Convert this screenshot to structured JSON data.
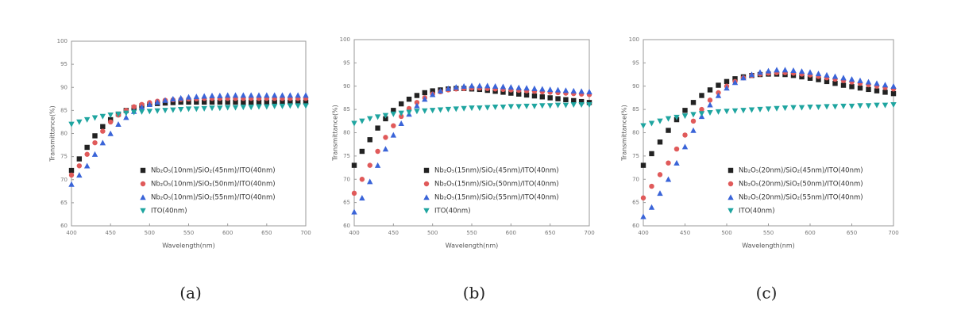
{
  "chart_data": [
    {
      "type": "scatter",
      "caption": "(a)",
      "xlabel": "Wavelength(nm)",
      "ylabel": "Transmittance(%)",
      "x": [
        400,
        410,
        420,
        430,
        440,
        450,
        460,
        470,
        480,
        490,
        500,
        510,
        520,
        530,
        540,
        550,
        560,
        570,
        580,
        590,
        600,
        610,
        620,
        630,
        640,
        650,
        660,
        670,
        680,
        690,
        700
      ],
      "xlim": [
        400,
        700
      ],
      "xticks": [
        400,
        450,
        500,
        550,
        600,
        650,
        700
      ],
      "ylim": [
        60,
        100
      ],
      "yticks": [
        60,
        65,
        70,
        75,
        80,
        85,
        90,
        95,
        100
      ],
      "legend": "lower right",
      "series": [
        {
          "name": "Nb₂O₅(10nm)/SiO₂(45nm)/ITO(40nm)",
          "color": "#222222",
          "marker": "square",
          "values": [
            72,
            74.5,
            77,
            79.5,
            81.5,
            83,
            84.2,
            85,
            85.6,
            86,
            86.3,
            86.5,
            86.6,
            86.7,
            86.8,
            86.8,
            86.8,
            86.8,
            86.8,
            86.8,
            86.8,
            86.8,
            86.8,
            86.8,
            86.8,
            86.8,
            86.8,
            86.8,
            86.8,
            86.8,
            86.8
          ]
        },
        {
          "name": "Nb₂O₅(10nm)/SiO₂(50nm)/ITO(40nm)",
          "color": "#e05a5a",
          "marker": "circle",
          "values": [
            71,
            73,
            75.5,
            78,
            80.5,
            82.5,
            84,
            85,
            85.8,
            86.3,
            86.7,
            87,
            87.2,
            87.3,
            87.4,
            87.5,
            87.5,
            87.6,
            87.6,
            87.6,
            87.6,
            87.6,
            87.6,
            87.6,
            87.6,
            87.6,
            87.6,
            87.6,
            87.6,
            87.6,
            87.6
          ]
        },
        {
          "name": "Nb₂O₅(10nm)/SiO₂(55nm)/ITO(40nm)",
          "color": "#3a64d8",
          "marker": "triangle-up",
          "values": [
            69,
            71,
            73,
            75.5,
            78,
            80,
            82,
            83.5,
            84.8,
            85.7,
            86.3,
            86.8,
            87.2,
            87.5,
            87.7,
            87.9,
            88,
            88.1,
            88.2,
            88.2,
            88.3,
            88.3,
            88.3,
            88.3,
            88.3,
            88.3,
            88.3,
            88.3,
            88.3,
            88.3,
            88.3
          ]
        },
        {
          "name": "ITO(40nm)",
          "color": "#1fa5a0",
          "marker": "triangle-down",
          "values": [
            82,
            82.5,
            83,
            83.4,
            83.7,
            84,
            84.2,
            84.4,
            84.6,
            84.7,
            84.8,
            84.9,
            85,
            85.1,
            85.2,
            85.3,
            85.3,
            85.4,
            85.5,
            85.5,
            85.6,
            85.6,
            85.7,
            85.7,
            85.8,
            85.8,
            85.9,
            85.9,
            86,
            86,
            86
          ]
        }
      ]
    },
    {
      "type": "scatter",
      "caption": "(b)",
      "xlabel": "Wavelength(nm)",
      "ylabel": "Transmittance(%)",
      "x": [
        400,
        410,
        420,
        430,
        440,
        450,
        460,
        470,
        480,
        490,
        500,
        510,
        520,
        530,
        540,
        550,
        560,
        570,
        580,
        590,
        600,
        610,
        620,
        630,
        640,
        650,
        660,
        670,
        680,
        690,
        700
      ],
      "xlim": [
        400,
        700
      ],
      "xticks": [
        400,
        450,
        500,
        550,
        600,
        650,
        700
      ],
      "ylim": [
        60,
        100
      ],
      "yticks": [
        60,
        65,
        70,
        75,
        80,
        85,
        90,
        95,
        100
      ],
      "legend": "lower right",
      "series": [
        {
          "name": "Nb₂O₅(15nm)/SiO₂(45nm)/ITO(40nm)",
          "color": "#222222",
          "marker": "square",
          "values": [
            73,
            76,
            78.5,
            81,
            83,
            84.8,
            86.2,
            87.2,
            88,
            88.6,
            89,
            89.2,
            89.4,
            89.5,
            89.5,
            89.4,
            89.3,
            89.1,
            88.9,
            88.7,
            88.5,
            88.3,
            88.1,
            87.9,
            87.7,
            87.5,
            87.3,
            87.1,
            86.9,
            86.7,
            86.5
          ]
        },
        {
          "name": "Nb₂O₅(15nm)/SiO₂(50nm)/ITO(40nm)",
          "color": "#e05a5a",
          "marker": "circle",
          "values": [
            67,
            70,
            73,
            76,
            79,
            81.5,
            83.5,
            85.2,
            86.5,
            87.5,
            88.3,
            88.8,
            89.2,
            89.4,
            89.5,
            89.6,
            89.6,
            89.5,
            89.4,
            89.3,
            89.2,
            89.1,
            89,
            88.9,
            88.8,
            88.7,
            88.6,
            88.5,
            88.4,
            88.3,
            88.2
          ]
        },
        {
          "name": "Nb₂O₅(15nm)/SiO₂(55nm)/ITO(40nm)",
          "color": "#3a64d8",
          "marker": "triangle-up",
          "values": [
            63,
            66,
            69.5,
            73,
            76.5,
            79.5,
            82,
            84,
            85.8,
            87.2,
            88.2,
            89,
            89.5,
            89.8,
            90,
            90.1,
            90.1,
            90.1,
            90,
            89.9,
            89.8,
            89.7,
            89.6,
            89.5,
            89.4,
            89.3,
            89.2,
            89.1,
            89,
            88.9,
            88.8
          ]
        },
        {
          "name": "ITO(40nm)",
          "color": "#1fa5a0",
          "marker": "triangle-down",
          "values": [
            82,
            82.5,
            83,
            83.4,
            83.7,
            84,
            84.2,
            84.4,
            84.6,
            84.7,
            84.8,
            84.9,
            85,
            85.1,
            85.2,
            85.3,
            85.3,
            85.4,
            85.5,
            85.5,
            85.6,
            85.6,
            85.7,
            85.7,
            85.8,
            85.8,
            85.9,
            85.9,
            86,
            86,
            86
          ]
        }
      ]
    },
    {
      "type": "scatter",
      "caption": "(c)",
      "xlabel": "Wavelength(nm)",
      "ylabel": "Transmittance(%)",
      "x": [
        400,
        410,
        420,
        430,
        440,
        450,
        460,
        470,
        480,
        490,
        500,
        510,
        520,
        530,
        540,
        550,
        560,
        570,
        580,
        590,
        600,
        610,
        620,
        630,
        640,
        650,
        660,
        670,
        680,
        690,
        700
      ],
      "xlim": [
        400,
        700
      ],
      "xticks": [
        400,
        450,
        500,
        550,
        600,
        650,
        700
      ],
      "ylim": [
        60,
        100
      ],
      "yticks": [
        60,
        65,
        70,
        75,
        80,
        85,
        90,
        95,
        100
      ],
      "legend": "lower right",
      "series": [
        {
          "name": "Nb₂O₅(20nm)/SiO₂(45nm)/ITO(40nm)",
          "color": "#222222",
          "marker": "square",
          "values": [
            73,
            75.5,
            78,
            80.5,
            82.8,
            84.8,
            86.5,
            88,
            89.2,
            90.2,
            91,
            91.6,
            92,
            92.3,
            92.5,
            92.6,
            92.6,
            92.5,
            92.3,
            92,
            91.7,
            91.4,
            91,
            90.6,
            90.2,
            89.9,
            89.6,
            89.3,
            89,
            88.7,
            88.4
          ]
        },
        {
          "name": "Nb₂O₅(20nm)/SiO₂(50nm)/ITO(40nm)",
          "color": "#e05a5a",
          "marker": "circle",
          "values": [
            66,
            68.5,
            71,
            73.5,
            76.5,
            79.5,
            82.5,
            85,
            87,
            88.6,
            90,
            91,
            91.8,
            92.3,
            92.6,
            92.8,
            92.9,
            92.9,
            92.8,
            92.6,
            92.4,
            92.1,
            91.8,
            91.5,
            91.2,
            90.9,
            90.6,
            90.3,
            90,
            89.7,
            89.4
          ]
        },
        {
          "name": "Nb₂O₅(20nm)/SiO₂(55nm)/ITO(40nm)",
          "color": "#3a64d8",
          "marker": "triangle-up",
          "values": [
            62,
            64,
            67,
            70,
            73.5,
            77,
            80.5,
            83.5,
            86,
            88,
            89.6,
            90.8,
            91.8,
            92.5,
            93,
            93.3,
            93.5,
            93.5,
            93.4,
            93.2,
            93,
            92.7,
            92.4,
            92.1,
            91.8,
            91.5,
            91.2,
            90.9,
            90.6,
            90.3,
            90
          ]
        },
        {
          "name": "ITO(40nm)",
          "color": "#1fa5a0",
          "marker": "triangle-down",
          "values": [
            81.5,
            82,
            82.5,
            83,
            83.3,
            83.6,
            83.9,
            84.1,
            84.3,
            84.5,
            84.6,
            84.7,
            84.8,
            84.9,
            85,
            85.1,
            85.2,
            85.3,
            85.4,
            85.4,
            85.5,
            85.5,
            85.6,
            85.6,
            85.7,
            85.7,
            85.8,
            85.8,
            85.9,
            85.9,
            86
          ]
        }
      ]
    }
  ]
}
